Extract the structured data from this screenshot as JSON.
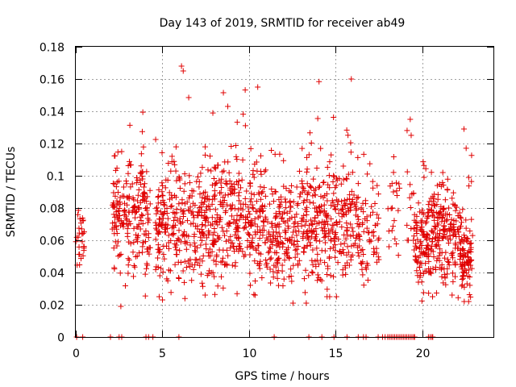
{
  "chart_data": {
    "type": "scatter",
    "title": "Day 143 of 2019, SRMTID for receiver ab49",
    "xlabel": "GPS time / hours",
    "ylabel": "SRMTID / TECUs",
    "xlim": [
      0,
      24.1
    ],
    "ylim": [
      0,
      0.18
    ],
    "x_ticks": [
      0,
      5,
      10,
      15,
      20
    ],
    "x_tick_labels": [
      "0",
      "5",
      "10",
      "15",
      "20"
    ],
    "y_ticks": [
      0,
      0.02,
      0.04,
      0.06,
      0.08,
      0.1,
      0.12,
      0.14,
      0.16,
      0.18
    ],
    "y_tick_labels": [
      "0",
      "0.02",
      "0.04",
      "0.06",
      "0.08",
      "0.1",
      "0.12",
      "0.14",
      "0.16",
      "0.18"
    ],
    "grid": true,
    "marker": "+",
    "color": "#e00000",
    "series": [
      {
        "name": "SRMTID",
        "clusters": [
          {
            "x_range": [
              0.0,
              0.5
            ],
            "y_mean": 0.062,
            "y_spread": 0.012,
            "y_min": 0.04,
            "y_max": 0.101,
            "n": 28
          },
          {
            "x_range": [
              2.1,
              4.3
            ],
            "y_mean": 0.078,
            "y_spread": 0.018,
            "y_min": 0.019,
            "y_max": 0.142,
            "n": 210
          },
          {
            "x_range": [
              4.6,
              7.9
            ],
            "y_mean": 0.07,
            "y_spread": 0.02,
            "y_min": 0.023,
            "y_max": 0.168,
            "n": 300
          },
          {
            "x_range": [
              7.9,
              11.0
            ],
            "y_mean": 0.075,
            "y_spread": 0.019,
            "y_min": 0.026,
            "y_max": 0.155,
            "n": 300
          },
          {
            "x_range": [
              11.0,
              13.5
            ],
            "y_mean": 0.068,
            "y_spread": 0.017,
            "y_min": 0.021,
            "y_max": 0.12,
            "n": 220
          },
          {
            "x_range": [
              13.5,
              16.3
            ],
            "y_mean": 0.07,
            "y_spread": 0.018,
            "y_min": 0.025,
            "y_max": 0.16,
            "n": 260
          },
          {
            "x_range": [
              16.3,
              17.5
            ],
            "y_mean": 0.062,
            "y_spread": 0.018,
            "y_min": 0.03,
            "y_max": 0.125,
            "n": 70
          },
          {
            "x_range": [
              18.0,
              18.7
            ],
            "y_mean": 0.078,
            "y_spread": 0.015,
            "y_min": 0.05,
            "y_max": 0.121,
            "n": 22
          },
          {
            "x_range": [
              19.1,
              19.5
            ],
            "y_mean": 0.08,
            "y_spread": 0.015,
            "y_min": 0.06,
            "y_max": 0.135,
            "n": 14
          },
          {
            "x_range": [
              19.5,
              20.5
            ],
            "y_mean": 0.058,
            "y_spread": 0.015,
            "y_min": 0.019,
            "y_max": 0.117,
            "n": 110
          },
          {
            "x_range": [
              20.5,
              22.2
            ],
            "y_mean": 0.065,
            "y_spread": 0.014,
            "y_min": 0.022,
            "y_max": 0.107,
            "n": 190
          },
          {
            "x_range": [
              22.2,
              22.9
            ],
            "y_mean": 0.05,
            "y_spread": 0.013,
            "y_min": 0.022,
            "y_max": 0.129,
            "n": 90
          }
        ],
        "outliers": [
          {
            "x": 2.6,
            "y": 0.019
          },
          {
            "x": 6.1,
            "y": 0.168
          },
          {
            "x": 6.2,
            "y": 0.165
          },
          {
            "x": 10.5,
            "y": 0.155
          },
          {
            "x": 15.9,
            "y": 0.16
          },
          {
            "x": 19.3,
            "y": 0.135
          },
          {
            "x": 22.4,
            "y": 0.129
          },
          {
            "x": 13.3,
            "y": 0.021
          }
        ],
        "zero_points_x": [
          0.05,
          0.4,
          2.0,
          2.5,
          2.65,
          4.05,
          4.2,
          4.45,
          5.95,
          11.45,
          13.45,
          14.2,
          14.9,
          15.65,
          16.3,
          16.6,
          16.75,
          17.45,
          17.7,
          17.85,
          18.0,
          18.1,
          18.2,
          18.3,
          18.4,
          18.5,
          18.6,
          18.7,
          18.8,
          18.9,
          19.0,
          19.1,
          19.2,
          19.3,
          19.4,
          19.5,
          19.55,
          20.35,
          20.45,
          20.55,
          20.6
        ]
      }
    ]
  }
}
